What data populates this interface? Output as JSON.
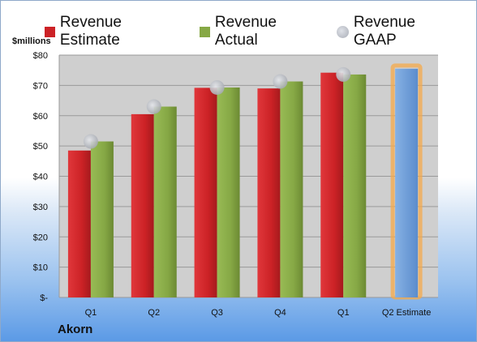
{
  "legend": {
    "estimate": "Revenue Estimate",
    "actual": "Revenue Actual",
    "gaap": "Revenue GAAP"
  },
  "units_label": "$millions",
  "company": "Akorn",
  "colors": {
    "estimate": "#cc2226",
    "actual": "#86a845",
    "gaap": "#b0b4bc",
    "forecast": "#6f9fd8",
    "forecast_glow": "#f5a94a",
    "plot_bg": "#cfcfcf"
  },
  "chart_data": {
    "type": "bar",
    "categories": [
      "Q1",
      "Q2",
      "Q3",
      "Q4",
      "Q1",
      "Q2 Estimate"
    ],
    "series": [
      {
        "name": "Revenue Estimate",
        "values": [
          48.5,
          60.5,
          69.2,
          69.0,
          74.2,
          null
        ]
      },
      {
        "name": "Revenue Actual",
        "values": [
          51.5,
          63.0,
          69.3,
          71.3,
          73.6,
          75.5
        ]
      },
      {
        "name": "Revenue GAAP",
        "values": [
          51.5,
          63.0,
          69.3,
          71.3,
          73.6,
          null
        ]
      }
    ],
    "y_tick_labels": [
      "$-",
      "$10",
      "$20",
      "$30",
      "$40",
      "$50",
      "$60",
      "$70",
      "$80"
    ],
    "ylim": [
      0,
      80
    ],
    "grid": true,
    "legend_position": "top"
  }
}
